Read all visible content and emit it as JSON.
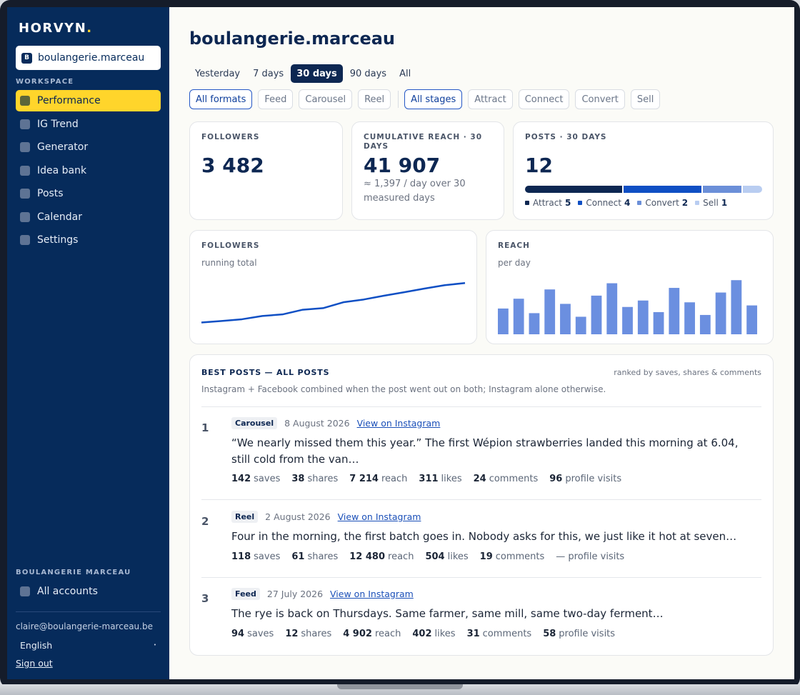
{
  "app": {
    "logo": "HORVYN",
    "logo_dot": "."
  },
  "account": {
    "badge": "B",
    "name": "boulangerie.marceau"
  },
  "sidebar": {
    "workspace_label": "WORKSPACE",
    "items": [
      {
        "label": "Performance",
        "active": true
      },
      {
        "label": "IG Trend"
      },
      {
        "label": "Generator"
      },
      {
        "label": "Idea bank"
      },
      {
        "label": "Posts"
      },
      {
        "label": "Calendar"
      },
      {
        "label": "Settings"
      }
    ],
    "org_label": "BOULANGERIE MARCEAU",
    "all_accounts": "All accounts",
    "email": "claire@boulangerie-marceau.be",
    "language": "English",
    "signout": "Sign out"
  },
  "page": {
    "title": "boulangerie.marceau"
  },
  "period_tabs": [
    "Yesterday",
    "7 days",
    "30 days",
    "90 days",
    "All"
  ],
  "period_active": "30 days",
  "format_filters": [
    "All formats",
    "Feed",
    "Carousel",
    "Reel"
  ],
  "stage_filters": [
    "All stages",
    "Attract",
    "Connect",
    "Convert",
    "Sell"
  ],
  "kpis": {
    "followers": {
      "label": "FOLLOWERS",
      "value": "3 482"
    },
    "reach": {
      "label_line1": "CUMULATIVE REACH · 30",
      "label_line2": "DAYS",
      "value": "41 907",
      "sub_line1": "≈ 1,397 / day over 30",
      "sub_line2": "measured days"
    },
    "posts": {
      "label": "POSTS · 30 DAYS",
      "value": "12",
      "stages": [
        {
          "name": "Attract",
          "count": 5,
          "color": "#0d2752"
        },
        {
          "name": "Connect",
          "count": 4,
          "color": "#0f4fc4"
        },
        {
          "name": "Convert",
          "count": 2,
          "color": "#6b8fd8"
        },
        {
          "name": "Sell",
          "count": 1,
          "color": "#b9cdf1"
        }
      ]
    }
  },
  "charts": {
    "followers": {
      "label": "FOLLOWERS",
      "sub": "running total"
    },
    "reach": {
      "label": "REACH",
      "sub": "per day"
    }
  },
  "chart_data": [
    {
      "type": "line",
      "title": "FOLLOWERS",
      "subtitle": "running total",
      "color": "#0f4fc4",
      "values": [
        3180,
        3192,
        3205,
        3230,
        3242,
        3278,
        3290,
        3335,
        3356,
        3385,
        3412,
        3440,
        3466,
        3482
      ],
      "ylim": [
        3150,
        3500
      ]
    },
    {
      "type": "bar",
      "title": "REACH",
      "subtitle": "per day",
      "color": "#6b8fe0",
      "values": [
        1000,
        1380,
        820,
        1740,
        1180,
        680,
        1500,
        1980,
        1060,
        1310,
        860,
        1800,
        1240,
        750,
        1620,
        2100,
        1120
      ],
      "ylim": [
        0,
        2300
      ]
    }
  ],
  "best_posts": {
    "title": "BEST POSTS — ALL POSTS",
    "ranked_by": "ranked by saves, shares & comments",
    "note": "Instagram + Facebook combined when the post went out on both; Instagram alone otherwise.",
    "link_label": "View on Instagram",
    "posts": [
      {
        "rank": "1",
        "format": "Carousel",
        "date": "8 August 2026",
        "text": "“We nearly missed them this year.” The first Wépion strawberries landed this morning at 6.04, still cold from the van…",
        "stats": [
          {
            "value": "142",
            "label": "saves"
          },
          {
            "value": "38",
            "label": "shares"
          },
          {
            "value": "7 214",
            "label": "reach"
          },
          {
            "value": "311",
            "label": "likes"
          },
          {
            "value": "24",
            "label": "comments"
          },
          {
            "value": "96",
            "label": "profile visits"
          }
        ]
      },
      {
        "rank": "2",
        "format": "Reel",
        "date": "2 August 2026",
        "text": "Four in the morning, the first batch goes in. Nobody asks for this, we just like it hot at seven…",
        "stats": [
          {
            "value": "118",
            "label": "saves"
          },
          {
            "value": "61",
            "label": "shares"
          },
          {
            "value": "12 480",
            "label": "reach"
          },
          {
            "value": "504",
            "label": "likes"
          },
          {
            "value": "19",
            "label": "comments"
          },
          {
            "value": "",
            "label": "— profile visits"
          }
        ]
      },
      {
        "rank": "3",
        "format": "Feed",
        "date": "27 July 2026",
        "text": "The rye is back on Thursdays. Same farmer, same mill, same two-day ferment…",
        "stats": [
          {
            "value": "94",
            "label": "saves"
          },
          {
            "value": "12",
            "label": "shares"
          },
          {
            "value": "4 902",
            "label": "reach"
          },
          {
            "value": "402",
            "label": "likes"
          },
          {
            "value": "31",
            "label": "comments"
          },
          {
            "value": "58",
            "label": "profile visits"
          }
        ]
      }
    ]
  }
}
